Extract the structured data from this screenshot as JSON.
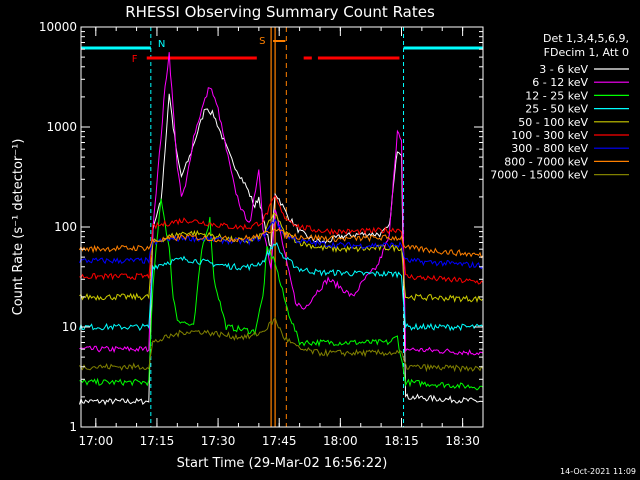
{
  "chart_data": {
    "type": "line",
    "title": "RHESSI Observing Summary Count Rates",
    "xlabel": "Start Time (29-Mar-02 16:56:22)",
    "ylabel": "Count Rate (s⁻¹ detector⁻¹)",
    "y_scale": "log",
    "xlim": [
      "16:56:22",
      "18:35:00"
    ],
    "ylim": [
      1,
      10000
    ],
    "x_ticks": [
      "17:00",
      "17:15",
      "17:30",
      "17:45",
      "18:00",
      "18:15",
      "18:30"
    ],
    "y_ticks": [
      "1",
      "10",
      "100",
      "1000",
      "10000"
    ],
    "legend_header": [
      "Det 1,3,4,5,6,9,",
      "FDecim 1, Att 0"
    ],
    "legend_position": "right",
    "footer": "14-Oct-2021 11:09",
    "flag_labels": {
      "night": "N",
      "flare": "F",
      "saa": "S"
    },
    "night_intervals": [
      [
        "16:56:22",
        "17:13:30"
      ],
      [
        "18:15:30",
        "18:35:00"
      ]
    ],
    "flare_intervals": [
      [
        "17:12:30",
        "17:39:30"
      ],
      [
        "17:51:00",
        "17:53:00"
      ],
      [
        "17:54:30",
        "18:14:30"
      ]
    ],
    "saa_interval": [
      "17:43:30",
      "17:46:30"
    ],
    "series": [
      {
        "name": "3 - 6 keV",
        "color": "#ffffff",
        "points": [
          [
            "16:56",
            "1.8"
          ],
          [
            "17:13",
            "1.8"
          ],
          [
            "17:14",
            "100"
          ],
          [
            "17:16",
            "180"
          ],
          [
            "17:17",
            "600"
          ],
          [
            "17:18",
            "2200"
          ],
          [
            "17:19",
            "1000"
          ],
          [
            "17:20",
            "500"
          ],
          [
            "17:21",
            "320"
          ],
          [
            "17:23",
            "500"
          ],
          [
            "17:25",
            "900"
          ],
          [
            "17:27",
            "1600"
          ],
          [
            "17:29",
            "1300"
          ],
          [
            "17:31",
            "800"
          ],
          [
            "17:33",
            "500"
          ],
          [
            "17:35",
            "350"
          ],
          [
            "17:37",
            "250"
          ],
          [
            "17:39",
            "160"
          ],
          [
            "17:40",
            "200"
          ],
          [
            "17:41",
            "120"
          ],
          [
            "17:43",
            "60"
          ],
          [
            "17:44",
            "220"
          ],
          [
            "17:45",
            "190"
          ],
          [
            "17:47",
            "130"
          ],
          [
            "17:50",
            "90"
          ],
          [
            "17:53",
            "75"
          ],
          [
            "17:56",
            "70"
          ],
          [
            "18:00",
            "80"
          ],
          [
            "18:05",
            "85"
          ],
          [
            "18:10",
            "85"
          ],
          [
            "18:12",
            "100"
          ],
          [
            "18:13",
            "250"
          ],
          [
            "18:14",
            "600"
          ],
          [
            "18:15",
            "550"
          ],
          [
            "18:16",
            "2"
          ],
          [
            "18:35",
            "1.8"
          ]
        ]
      },
      {
        "name": "6 - 12 keV",
        "color": "#ff00ff",
        "points": [
          [
            "16:56",
            "6"
          ],
          [
            "17:13",
            "6"
          ],
          [
            "17:14",
            "100"
          ],
          [
            "17:16",
            "800"
          ],
          [
            "17:17",
            "2500"
          ],
          [
            "17:18",
            "5500"
          ],
          [
            "17:19",
            "1500"
          ],
          [
            "17:20",
            "400"
          ],
          [
            "17:21",
            "200"
          ],
          [
            "17:22",
            "250"
          ],
          [
            "17:24",
            "800"
          ],
          [
            "17:26",
            "1500"
          ],
          [
            "17:28",
            "2600"
          ],
          [
            "17:30",
            "1500"
          ],
          [
            "17:32",
            "600"
          ],
          [
            "17:34",
            "250"
          ],
          [
            "17:36",
            "140"
          ],
          [
            "17:38",
            "110"
          ],
          [
            "17:40",
            "400"
          ],
          [
            "17:41",
            "100"
          ],
          [
            "17:43",
            "40"
          ],
          [
            "17:44",
            "150"
          ],
          [
            "17:45",
            "100"
          ],
          [
            "17:47",
            "40"
          ],
          [
            "17:49",
            "18"
          ],
          [
            "17:51",
            "15"
          ],
          [
            "17:54",
            "22"
          ],
          [
            "17:57",
            "30"
          ],
          [
            "18:00",
            "25"
          ],
          [
            "18:03",
            "20"
          ],
          [
            "18:06",
            "30"
          ],
          [
            "18:09",
            "40"
          ],
          [
            "18:12",
            "80"
          ],
          [
            "18:13",
            "300"
          ],
          [
            "18:14",
            "900"
          ],
          [
            "18:15",
            "700"
          ],
          [
            "18:16",
            "6"
          ],
          [
            "18:35",
            "5.5"
          ]
        ]
      },
      {
        "name": "12 - 25 keV",
        "color": "#00ff00",
        "points": [
          [
            "16:56",
            "2.8"
          ],
          [
            "17:13",
            "2.8"
          ],
          [
            "17:14",
            "25"
          ],
          [
            "17:16",
            "200"
          ],
          [
            "17:17",
            "110"
          ],
          [
            "17:18",
            "60"
          ],
          [
            "17:19",
            "20"
          ],
          [
            "17:20",
            "12"
          ],
          [
            "17:24",
            "10"
          ],
          [
            "17:26",
            "60"
          ],
          [
            "17:28",
            "120"
          ],
          [
            "17:29",
            "30"
          ],
          [
            "17:32",
            "10"
          ],
          [
            "17:39",
            "9"
          ],
          [
            "17:41",
            "20"
          ],
          [
            "17:42",
            "60"
          ],
          [
            "17:44",
            "45"
          ],
          [
            "17:45",
            "30"
          ],
          [
            "17:47",
            "15"
          ],
          [
            "17:50",
            "7"
          ],
          [
            "18:12",
            "7"
          ],
          [
            "18:14",
            "8"
          ],
          [
            "18:16",
            "2.8"
          ],
          [
            "18:35",
            "2.5"
          ]
        ]
      },
      {
        "name": "25 - 50 keV",
        "color": "#00ffff",
        "points": [
          [
            "16:56",
            "10"
          ],
          [
            "17:13",
            "10"
          ],
          [
            "17:14",
            "40"
          ],
          [
            "17:18",
            "45"
          ],
          [
            "17:22",
            "48"
          ],
          [
            "17:26",
            "45"
          ],
          [
            "17:30",
            "42"
          ],
          [
            "17:34",
            "40"
          ],
          [
            "17:38",
            "40"
          ],
          [
            "17:41",
            "45"
          ],
          [
            "17:44",
            "70"
          ],
          [
            "17:46",
            "50"
          ],
          [
            "17:50",
            "38"
          ],
          [
            "17:55",
            "35"
          ],
          [
            "18:00",
            "35"
          ],
          [
            "18:05",
            "34"
          ],
          [
            "18:10",
            "34"
          ],
          [
            "18:15",
            "34"
          ],
          [
            "18:16",
            "10"
          ],
          [
            "18:35",
            "10"
          ]
        ]
      },
      {
        "name": "50 - 100 keV",
        "color": "#cccc00",
        "points": [
          [
            "16:56",
            "20"
          ],
          [
            "17:13",
            "20"
          ],
          [
            "17:14",
            "70"
          ],
          [
            "17:18",
            "80"
          ],
          [
            "17:22",
            "88"
          ],
          [
            "17:26",
            "85"
          ],
          [
            "17:30",
            "80"
          ],
          [
            "17:34",
            "74"
          ],
          [
            "17:38",
            "72"
          ],
          [
            "17:41",
            "85"
          ],
          [
            "17:44",
            "140"
          ],
          [
            "17:46",
            "90"
          ],
          [
            "17:50",
            "70"
          ],
          [
            "17:55",
            "62"
          ],
          [
            "18:00",
            "60"
          ],
          [
            "18:05",
            "60"
          ],
          [
            "18:10",
            "62"
          ],
          [
            "18:15",
            "62"
          ],
          [
            "18:16",
            "20"
          ],
          [
            "18:35",
            "19"
          ]
        ]
      },
      {
        "name": "100 - 300 keV",
        "color": "#ff0000",
        "points": [
          [
            "16:56",
            "32"
          ],
          [
            "17:13",
            "32"
          ],
          [
            "17:14",
            "100"
          ],
          [
            "17:18",
            "110"
          ],
          [
            "17:22",
            "118"
          ],
          [
            "17:26",
            "112"
          ],
          [
            "17:30",
            "105"
          ],
          [
            "17:34",
            "100"
          ],
          [
            "17:38",
            "100"
          ],
          [
            "17:41",
            "115"
          ],
          [
            "17:44",
            "200"
          ],
          [
            "17:46",
            "130"
          ],
          [
            "17:50",
            "100"
          ],
          [
            "17:55",
            "92"
          ],
          [
            "18:00",
            "90"
          ],
          [
            "18:05",
            "90"
          ],
          [
            "18:10",
            "92"
          ],
          [
            "18:15",
            "95"
          ],
          [
            "18:16",
            "32"
          ],
          [
            "18:35",
            "28"
          ]
        ]
      },
      {
        "name": "300 - 800 keV",
        "color": "#0000ff",
        "points": [
          [
            "16:56",
            "46"
          ],
          [
            "17:13",
            "46"
          ],
          [
            "17:14",
            "70"
          ],
          [
            "17:18",
            "75"
          ],
          [
            "17:22",
            "78"
          ],
          [
            "17:26",
            "76"
          ],
          [
            "17:30",
            "74"
          ],
          [
            "17:34",
            "72"
          ],
          [
            "17:38",
            "72"
          ],
          [
            "17:41",
            "80"
          ],
          [
            "17:44",
            "120"
          ],
          [
            "17:46",
            "85"
          ],
          [
            "17:50",
            "72"
          ],
          [
            "17:55",
            "68"
          ],
          [
            "18:00",
            "66"
          ],
          [
            "18:05",
            "65"
          ],
          [
            "18:10",
            "66"
          ],
          [
            "18:15",
            "66"
          ],
          [
            "18:16",
            "46"
          ],
          [
            "18:35",
            "41"
          ]
        ]
      },
      {
        "name": "800 - 7000 keV",
        "color": "#ff8000",
        "points": [
          [
            "16:56",
            "60"
          ],
          [
            "17:13",
            "62"
          ],
          [
            "17:14",
            "72"
          ],
          [
            "17:18",
            "76"
          ],
          [
            "17:22",
            "80"
          ],
          [
            "17:26",
            "78"
          ],
          [
            "17:30",
            "76"
          ],
          [
            "17:34",
            "76"
          ],
          [
            "17:38",
            "78"
          ],
          [
            "17:41",
            "82"
          ],
          [
            "17:44",
            "100"
          ],
          [
            "17:46",
            "85"
          ],
          [
            "17:50",
            "80"
          ],
          [
            "17:55",
            "78"
          ],
          [
            "18:00",
            "76"
          ],
          [
            "18:05",
            "77"
          ],
          [
            "18:10",
            "78"
          ],
          [
            "18:15",
            "78"
          ],
          [
            "18:16",
            "62"
          ],
          [
            "18:35",
            "52"
          ]
        ]
      },
      {
        "name": "7000 - 15000 keV",
        "color": "#808000",
        "points": [
          [
            "16:56",
            "4"
          ],
          [
            "17:13",
            "4"
          ],
          [
            "17:14",
            "7"
          ],
          [
            "17:18",
            "8"
          ],
          [
            "17:22",
            "9"
          ],
          [
            "17:26",
            "9"
          ],
          [
            "17:30",
            "8.5"
          ],
          [
            "17:34",
            "8"
          ],
          [
            "17:38",
            "8"
          ],
          [
            "17:41",
            "9"
          ],
          [
            "17:44",
            "12"
          ],
          [
            "17:46",
            "8"
          ],
          [
            "17:50",
            "6"
          ],
          [
            "17:55",
            "5.5"
          ],
          [
            "18:00",
            "5.5"
          ],
          [
            "18:05",
            "5.5"
          ],
          [
            "18:10",
            "5.5"
          ],
          [
            "18:15",
            "5.5"
          ],
          [
            "18:16",
            "4"
          ],
          [
            "18:35",
            "3.8"
          ]
        ]
      }
    ]
  }
}
